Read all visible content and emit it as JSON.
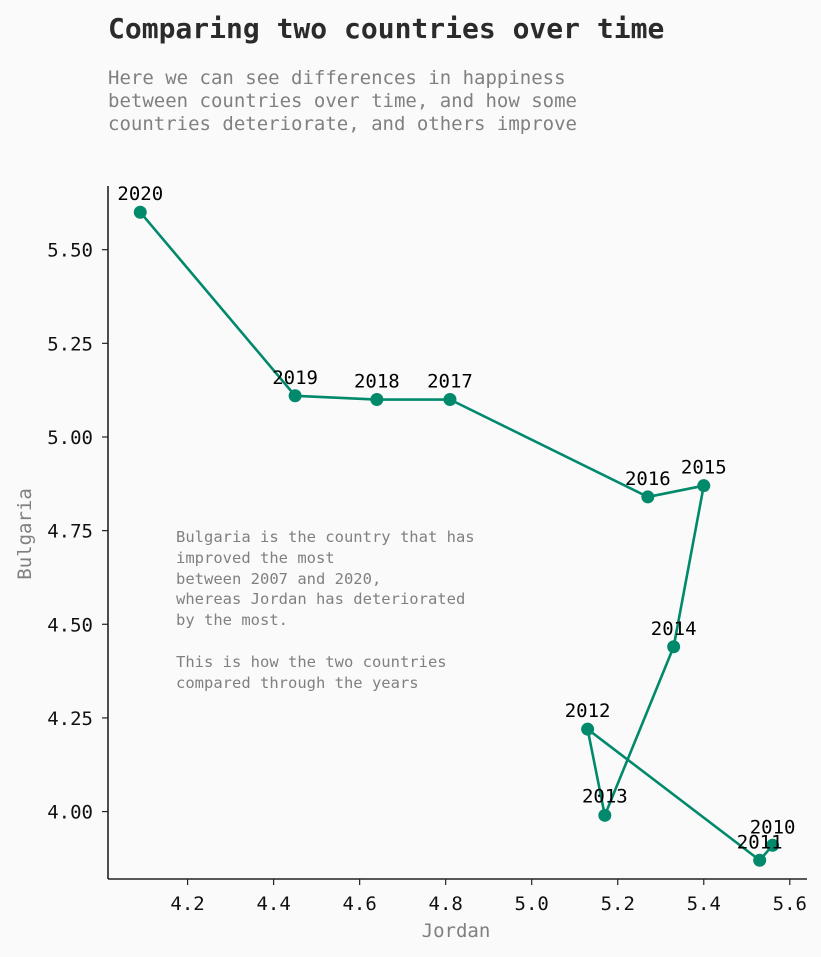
{
  "chart_data": {
    "type": "line",
    "title": "Comparing two countries over time",
    "subtitle": [
      "Here we can see differences in happiness",
      "between countries over time, and how some",
      "countries deteriorate, and others improve"
    ],
    "xlabel": "Jordan",
    "ylabel": "Bulgaria",
    "xlim": [
      4.015,
      5.64
    ],
    "ylim": [
      3.82,
      5.67
    ],
    "xticks": [
      "4.2",
      "4.4",
      "4.6",
      "4.8",
      "5.0",
      "5.2",
      "5.4",
      "5.6"
    ],
    "yticks": [
      "4.00",
      "4.25",
      "4.50",
      "4.75",
      "5.00",
      "5.25",
      "5.50"
    ],
    "grid": false,
    "color": "#00896b",
    "points": [
      {
        "label": "2010",
        "x": 5.56,
        "y": 3.91
      },
      {
        "label": "2011",
        "x": 5.53,
        "y": 3.87
      },
      {
        "label": "2012",
        "x": 5.13,
        "y": 4.22
      },
      {
        "label": "2013",
        "x": 5.17,
        "y": 3.99
      },
      {
        "label": "2014",
        "x": 5.33,
        "y": 4.44
      },
      {
        "label": "2015",
        "x": 5.4,
        "y": 4.87
      },
      {
        "label": "2016",
        "x": 5.27,
        "y": 4.84
      },
      {
        "label": "2017",
        "x": 4.81,
        "y": 5.1
      },
      {
        "label": "2018",
        "x": 4.64,
        "y": 5.1
      },
      {
        "label": "2019",
        "x": 4.45,
        "y": 5.11
      },
      {
        "label": "2020",
        "x": 4.09,
        "y": 5.6
      }
    ],
    "annotation": [
      "Bulgaria is the country that has",
      "improved the most",
      "between 2007 and 2020,",
      "whereas Jordan has deteriorated",
      "by the most.",
      "",
      "This is how the two countries",
      "compared through the years"
    ]
  }
}
